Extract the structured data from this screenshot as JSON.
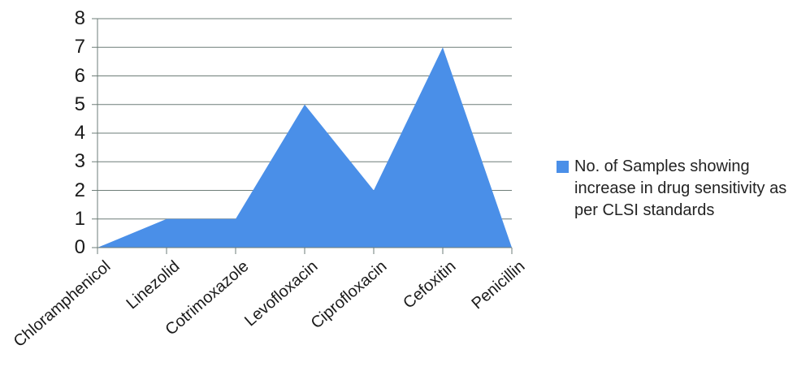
{
  "chart_data": {
    "type": "area",
    "categories": [
      "Chloramphenicol",
      "Linezolid",
      "Cotrimoxazole",
      "Levofloxacin",
      "Ciprofloxacin",
      "Cefoxitin",
      "Penicillin"
    ],
    "series": [
      {
        "name": "No. of Samples showing increase in drug sensitivity as per CLSI standards",
        "values": [
          0,
          1,
          1,
          5,
          2,
          7,
          0
        ]
      }
    ],
    "ylim": [
      0,
      8
    ],
    "yticks": [
      0,
      1,
      2,
      3,
      4,
      5,
      6,
      7,
      8
    ],
    "grid": true,
    "legend_position": "right",
    "legend_text": "No. of Samples showing\nincrease in drug sensitivity as\nper CLSI standards",
    "colors": {
      "area_fill": "#4A8FE8",
      "gridline": "#6E7D78",
      "axis": "#6E7D78",
      "tick_text": "#1A1A1A"
    }
  }
}
